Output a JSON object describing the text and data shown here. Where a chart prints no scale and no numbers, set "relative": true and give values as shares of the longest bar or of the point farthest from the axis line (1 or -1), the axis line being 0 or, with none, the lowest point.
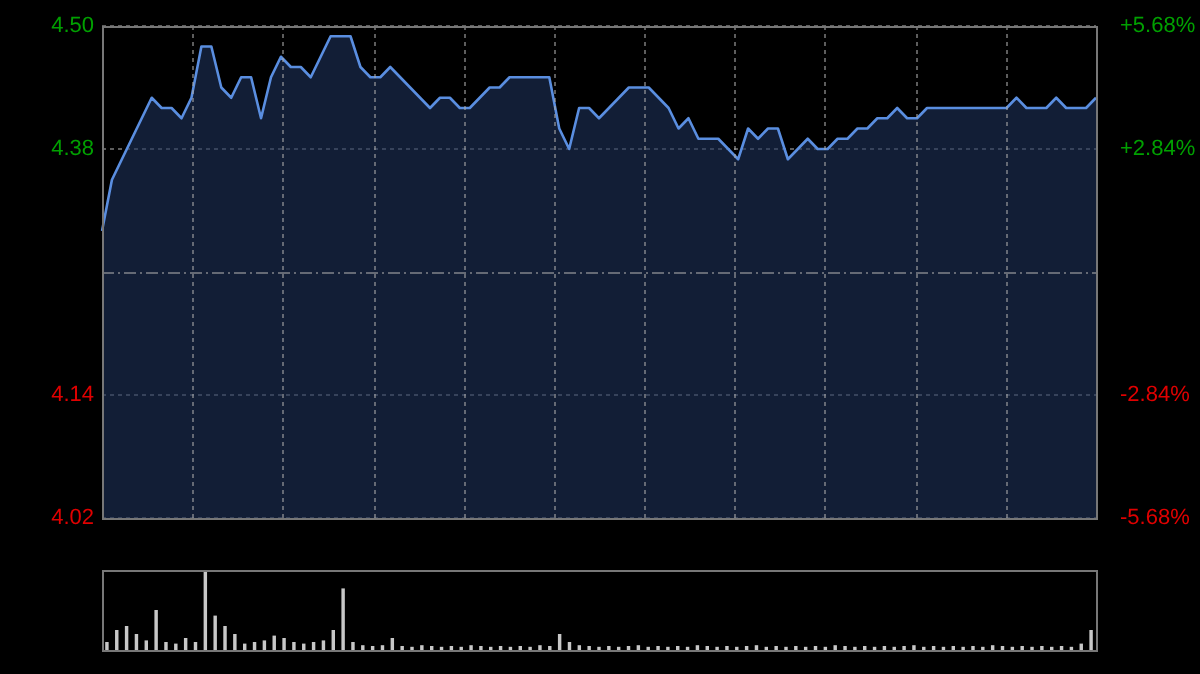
{
  "chart_data": [
    {
      "type": "area",
      "categories": [
        null,
        null,
        null,
        null,
        null,
        null,
        null,
        null,
        null,
        null,
        null,
        null,
        null,
        null,
        null,
        null,
        null,
        null,
        null,
        null,
        null,
        null,
        null,
        null,
        null,
        null,
        null,
        null,
        null,
        null,
        null,
        null,
        null,
        null,
        null,
        null,
        null,
        null,
        null,
        null,
        null,
        null,
        null,
        null,
        null,
        null,
        null,
        null,
        null,
        null,
        null,
        null,
        null,
        null,
        null,
        null,
        null,
        null,
        null,
        null,
        null,
        null,
        null,
        null,
        null,
        null,
        null,
        null,
        null,
        null,
        null,
        null,
        null,
        null,
        null,
        null,
        null,
        null,
        null,
        null,
        null,
        null,
        null,
        null,
        null,
        null,
        null,
        null,
        null,
        null,
        null,
        null,
        null,
        null,
        null,
        null,
        null,
        null,
        null,
        null,
        null
      ],
      "series": [
        {
          "color": "#5a8ee0",
          "values": [
            4.3,
            4.35,
            4.37,
            4.39,
            4.41,
            4.43,
            4.42,
            4.42,
            4.41,
            4.43,
            4.48,
            4.48,
            4.44,
            4.43,
            4.45,
            4.45,
            4.41,
            4.45,
            4.47,
            4.46,
            4.46,
            4.45,
            4.47,
            4.49,
            4.49,
            4.49,
            4.46,
            4.45,
            4.45,
            4.46,
            4.45,
            4.44,
            4.43,
            4.42,
            4.43,
            4.43,
            4.42,
            4.42,
            4.43,
            4.44,
            4.44,
            4.45,
            4.45,
            4.45,
            4.45,
            4.45,
            4.4,
            4.38,
            4.42,
            4.42,
            4.41,
            4.42,
            4.43,
            4.44,
            4.44,
            4.44,
            4.43,
            4.42,
            4.4,
            4.41,
            4.39,
            4.39,
            4.39,
            4.38,
            4.37,
            4.4,
            4.39,
            4.4,
            4.4,
            4.37,
            4.38,
            4.39,
            4.38,
            4.38,
            4.39,
            4.39,
            4.4,
            4.4,
            4.41,
            4.41,
            4.42,
            4.41,
            4.41,
            4.42,
            4.42,
            4.42,
            4.42,
            4.42,
            4.42,
            4.42,
            4.42,
            4.42,
            4.43,
            4.42,
            4.42,
            4.42,
            4.43,
            4.42,
            4.42,
            4.42,
            4.43
          ]
        }
      ],
      "ylim": [
        4.02,
        4.5
      ],
      "yticks": [
        {
          "value": 4.02,
          "label": "4.02"
        },
        {
          "value": 4.14,
          "label": "4.14"
        },
        {
          "value": 4.38,
          "label": "4.38"
        },
        {
          "value": 4.5,
          "label": "4.50"
        }
      ],
      "y2lim": [
        -5.68,
        5.68
      ],
      "y2ticks": [
        {
          "value": -5.68,
          "label": "-5.68%"
        },
        {
          "value": -2.84,
          "label": "-2.84%"
        },
        {
          "value": 2.84,
          "label": "+2.84%"
        },
        {
          "value": 5.68,
          "label": "+5.68%"
        }
      ],
      "ref_lines": [
        {
          "axis": "y",
          "value": 4.26,
          "label": null,
          "line_style": "dashed"
        }
      ],
      "grid": true,
      "tick_labels": "y",
      "legend": false,
      "marker": "none"
    },
    {
      "type": "bar",
      "relative": true,
      "color": "#c8c8c8",
      "categories": [
        null,
        null,
        null,
        null,
        null,
        null,
        null,
        null,
        null,
        null,
        null,
        null,
        null,
        null,
        null,
        null,
        null,
        null,
        null,
        null,
        null,
        null,
        null,
        null,
        null,
        null,
        null,
        null,
        null,
        null,
        null,
        null,
        null,
        null,
        null,
        null,
        null,
        null,
        null,
        null,
        null,
        null,
        null,
        null,
        null,
        null,
        null,
        null,
        null,
        null,
        null,
        null,
        null,
        null,
        null,
        null,
        null,
        null,
        null,
        null,
        null,
        null,
        null,
        null,
        null,
        null,
        null,
        null,
        null,
        null,
        null,
        null,
        null,
        null,
        null,
        null,
        null,
        null,
        null,
        null,
        null,
        null,
        null,
        null,
        null,
        null,
        null,
        null,
        null,
        null,
        null,
        null,
        null,
        null,
        null,
        null,
        null,
        null,
        null,
        null,
        null
      ],
      "values": [
        0.1,
        0.25,
        0.3,
        0.2,
        0.12,
        0.5,
        0.1,
        0.08,
        0.15,
        0.1,
        1,
        0.43,
        0.3,
        0.2,
        0.08,
        0.1,
        0.12,
        0.18,
        0.15,
        0.1,
        0.08,
        0.1,
        0.12,
        0.25,
        0.77,
        0.1,
        0.06,
        0.05,
        0.06,
        0.15,
        0.05,
        0.04,
        0.06,
        0.05,
        0.04,
        0.05,
        0.04,
        0.06,
        0.05,
        0.04,
        0.05,
        0.04,
        0.05,
        0.04,
        0.06,
        0.05,
        0.2,
        0.1,
        0.06,
        0.05,
        0.04,
        0.05,
        0.04,
        0.05,
        0.06,
        0.04,
        0.05,
        0.04,
        0.05,
        0.04,
        0.06,
        0.05,
        0.04,
        0.05,
        0.04,
        0.05,
        0.06,
        0.04,
        0.05,
        0.04,
        0.05,
        0.04,
        0.05,
        0.04,
        0.06,
        0.05,
        0.04,
        0.05,
        0.04,
        0.05,
        0.04,
        0.05,
        0.06,
        0.04,
        0.05,
        0.04,
        0.05,
        0.04,
        0.05,
        0.04,
        0.06,
        0.05,
        0.04,
        0.05,
        0.04,
        0.05,
        0.04,
        0.05,
        0.04,
        0.08,
        0.25
      ],
      "grid": false,
      "tick_labels": false,
      "legend": false
    }
  ]
}
